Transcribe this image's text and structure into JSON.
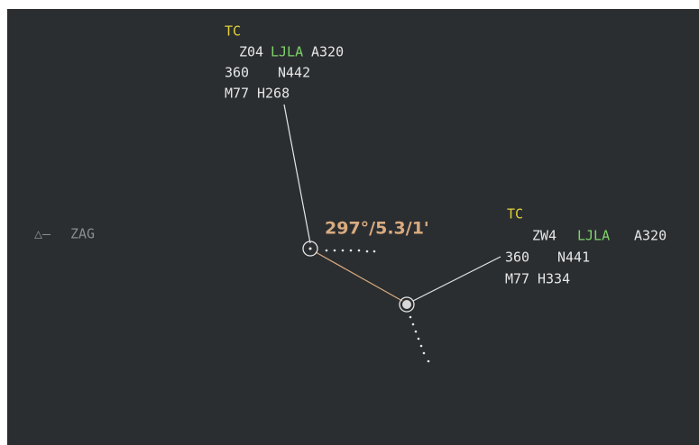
{
  "fixes": [
    {
      "symbol": "△—",
      "name": "ZAG"
    }
  ],
  "tracks": [
    {
      "status": "TC",
      "callsign": "Z04",
      "destination": "LJLA",
      "aircraft": "A320",
      "level": "360",
      "route": "N442",
      "speed": "M77",
      "heading": "H268"
    },
    {
      "status": "TC",
      "callsign": "ZW4",
      "destination": "LJLA",
      "aircraft": "A320",
      "level": "360",
      "route": "N441",
      "speed": "M77",
      "heading": "H334"
    }
  ],
  "measurement": {
    "label": "297°/5.3/1'"
  }
}
